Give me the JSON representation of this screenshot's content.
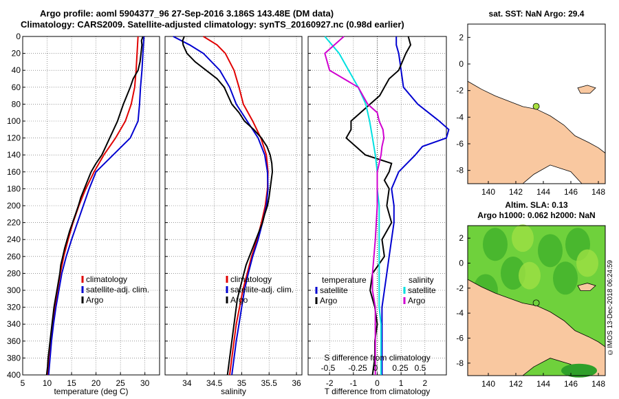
{
  "header": {
    "line1": "Argo profile: aoml 5904377_96 27-Sep-2016 3.186S 143.48E (DM data)",
    "line2": "Climatology: CARS2009. Satellite-adjusted climatology: synTS_20160927.nc (0.98d earlier)"
  },
  "side_label": "©IMOS 13-Dec-2018 06:24:59",
  "colors": {
    "climatology": "#e00000",
    "satellite": "#0000d0",
    "argo": "#000000",
    "salinity_diff": "#d000d0",
    "sat_sal_diff": "#00e0e0",
    "land": "#f9c8a0"
  },
  "chart_data": [
    {
      "type": "line",
      "title": "",
      "xlabel": "temperature (deg C)",
      "ylabel": "",
      "xlim": [
        5,
        33
      ],
      "ylim": [
        400,
        0
      ],
      "xticks": [
        5,
        10,
        15,
        20,
        25,
        30
      ],
      "yticks": [
        0,
        20,
        40,
        60,
        80,
        100,
        120,
        140,
        160,
        180,
        200,
        220,
        240,
        260,
        280,
        300,
        320,
        340,
        360,
        380,
        400
      ],
      "legend": [
        "climatology",
        "satellite-adj. clim.",
        "Argo"
      ],
      "series": [
        {
          "name": "climatology",
          "depth": [
            0,
            10,
            20,
            40,
            60,
            80,
            100,
            120,
            140,
            160,
            180,
            200,
            220,
            240,
            260,
            280,
            300,
            320,
            340,
            360,
            380,
            400
          ],
          "values": [
            28.6,
            28.5,
            28.4,
            28.2,
            27.9,
            27.2,
            26.0,
            24.0,
            21.6,
            19.6,
            17.9,
            16.5,
            15.3,
            14.3,
            13.4,
            12.7,
            12.1,
            11.6,
            11.2,
            10.8,
            10.5,
            10.1
          ]
        },
        {
          "name": "satellite",
          "depth": [
            0,
            10,
            20,
            40,
            60,
            80,
            100,
            120,
            140,
            160,
            180,
            200,
            220,
            240,
            260,
            280,
            300,
            320,
            340,
            360,
            380,
            400
          ],
          "values": [
            29.8,
            29.7,
            29.6,
            29.4,
            29.1,
            28.9,
            28.6,
            27.0,
            23.5,
            20.0,
            18.6,
            17.4,
            16.2,
            15.0,
            13.9,
            13.0,
            12.4,
            11.8,
            11.3,
            10.9,
            10.6,
            10.3
          ]
        },
        {
          "name": "Argo",
          "depth": [
            0,
            5,
            10,
            20,
            30,
            40,
            50,
            60,
            70,
            80,
            90,
            100,
            110,
            120,
            130,
            140,
            150,
            160,
            170,
            180,
            190,
            200,
            210,
            220,
            230,
            240,
            250,
            260,
            270,
            280,
            290,
            300,
            310,
            320,
            330,
            340,
            350,
            360,
            370,
            380,
            390,
            400
          ],
          "values": [
            29.6,
            29.3,
            29.4,
            29.2,
            29.0,
            28.6,
            27.6,
            27.0,
            26.3,
            25.6,
            25.0,
            24.4,
            23.6,
            22.8,
            22.0,
            21.2,
            20.0,
            19.0,
            18.3,
            17.6,
            16.9,
            16.4,
            15.8,
            15.2,
            14.6,
            14.1,
            13.6,
            13.2,
            12.8,
            12.6,
            12.3,
            12.0,
            11.7,
            11.4,
            11.2,
            11.0,
            10.8,
            10.6,
            10.4,
            10.2,
            10.1,
            9.9
          ]
        }
      ]
    },
    {
      "type": "line",
      "xlabel": "salinity",
      "xlim": [
        33.6,
        36.1
      ],
      "ylim": [
        400,
        0
      ],
      "xticks": [
        34,
        34.5,
        35,
        35.5,
        36
      ],
      "legend": [
        "climatology",
        "satellite-adj. clim.",
        "Argo"
      ],
      "series": [
        {
          "name": "climatology",
          "depth": [
            0,
            10,
            20,
            40,
            60,
            80,
            100,
            120,
            140,
            160,
            180,
            200,
            220,
            240,
            260,
            280,
            300,
            320,
            340,
            360,
            380,
            400
          ],
          "values": [
            34.3,
            34.55,
            34.7,
            34.86,
            34.95,
            35.03,
            35.2,
            35.35,
            35.45,
            35.48,
            35.47,
            35.43,
            35.36,
            35.28,
            35.18,
            35.1,
            35.02,
            34.96,
            34.9,
            34.86,
            34.82,
            34.78
          ]
        },
        {
          "name": "satellite",
          "depth": [
            0,
            10,
            20,
            40,
            60,
            80,
            100,
            120,
            140,
            160,
            180,
            200,
            220,
            240,
            260,
            280,
            300,
            320,
            340,
            360,
            380,
            400
          ],
          "values": [
            33.75,
            34.05,
            34.3,
            34.6,
            34.78,
            34.9,
            35.1,
            35.3,
            35.42,
            35.47,
            35.48,
            35.45,
            35.38,
            35.3,
            35.2,
            35.12,
            35.05,
            35.0,
            34.95,
            34.9,
            34.86,
            34.82
          ]
        },
        {
          "name": "Argo",
          "depth": [
            0,
            5,
            10,
            20,
            30,
            40,
            50,
            60,
            70,
            80,
            90,
            100,
            110,
            120,
            130,
            140,
            150,
            160,
            170,
            180,
            190,
            200,
            210,
            220,
            230,
            240,
            250,
            260,
            270,
            280,
            290,
            300,
            310,
            320,
            330,
            340,
            350,
            360,
            370,
            380,
            390,
            400
          ],
          "values": [
            33.95,
            33.92,
            33.93,
            34.0,
            34.15,
            34.35,
            34.55,
            34.68,
            34.75,
            34.82,
            34.95,
            35.05,
            35.22,
            35.36,
            35.46,
            35.52,
            35.55,
            35.56,
            35.54,
            35.52,
            35.5,
            35.47,
            35.42,
            35.38,
            35.32,
            35.26,
            35.2,
            35.14,
            35.08,
            35.04,
            35.0,
            34.96,
            34.92,
            34.9,
            34.88,
            34.86,
            34.84,
            34.82,
            34.8,
            34.78,
            34.76,
            34.74
          ]
        }
      ]
    },
    {
      "type": "line",
      "xlabel": "T difference from climatology",
      "xlabel2": "S difference from climatology",
      "xlim": [
        -2.9,
        2.9
      ],
      "ylim": [
        400,
        0
      ],
      "xticks": [
        -2,
        -1,
        0,
        1,
        2
      ],
      "xticks_S": [
        "-0.5",
        "-0.25",
        "0",
        "0.25",
        "0.5"
      ],
      "legend_T_title": "temperature",
      "legend_S_title": "salinity",
      "legend": [
        "satellite",
        "Argo",
        "satellite",
        "Argo"
      ],
      "series": [
        {
          "name": "T satellite",
          "depth": [
            0,
            10,
            20,
            40,
            60,
            80,
            100,
            110,
            120,
            130,
            140,
            160,
            180,
            200,
            220,
            240,
            260,
            280,
            300,
            320,
            340,
            360,
            380,
            400
          ],
          "values": [
            0.8,
            0.8,
            0.9,
            1.0,
            1.1,
            1.7,
            2.6,
            3.0,
            2.9,
            1.9,
            1.6,
            0.9,
            0.6,
            0.7,
            0.7,
            0.6,
            0.5,
            0.4,
            0.3,
            0.2,
            0.2,
            0.2,
            0.2,
            0.2
          ]
        },
        {
          "name": "T Argo",
          "depth": [
            0,
            10,
            20,
            40,
            50,
            60,
            70,
            80,
            90,
            100,
            110,
            120,
            130,
            140,
            150,
            160,
            170,
            180,
            200,
            220,
            240,
            260,
            280,
            300,
            320,
            340,
            360,
            380,
            400
          ],
          "values": [
            1.3,
            1.4,
            1.2,
            0.9,
            0.5,
            0.3,
            0.1,
            -0.3,
            -0.7,
            -1.1,
            -1.1,
            -1.3,
            -0.9,
            -0.5,
            0.6,
            0.5,
            0.3,
            0.5,
            0.4,
            0.6,
            0.2,
            0.3,
            -0.2,
            -0.3,
            -0.1,
            0.0,
            -0.1,
            -0.1,
            -0.2
          ]
        },
        {
          "name": "S satellite",
          "depth": [
            0,
            20,
            40,
            60,
            80,
            100,
            120,
            140,
            160,
            180,
            200,
            220,
            240,
            260,
            280,
            300,
            320,
            340,
            360,
            380,
            400
          ],
          "values": [
            -0.55,
            -0.4,
            -0.3,
            -0.2,
            -0.12,
            -0.08,
            -0.05,
            -0.02,
            0.0,
            0.0,
            0.02,
            0.02,
            0.02,
            0.02,
            0.02,
            0.02,
            0.02,
            0.04,
            0.04,
            0.04,
            0.04
          ]
        },
        {
          "name": "S Argo",
          "depth": [
            0,
            20,
            40,
            50,
            60,
            70,
            80,
            90,
            100,
            110,
            120,
            130,
            140,
            160,
            200,
            240,
            280,
            300,
            320,
            360,
            380,
            400
          ],
          "values": [
            -0.35,
            -0.55,
            -0.5,
            -0.35,
            -0.2,
            -0.15,
            -0.1,
            0.0,
            0.02,
            0.06,
            0.07,
            0.05,
            0.04,
            0.0,
            0.0,
            -0.02,
            -0.05,
            -0.05,
            -0.02,
            -0.02,
            -0.02,
            -0.02
          ]
        }
      ]
    },
    {
      "type": "map",
      "title": "sat. SST: NaN Argo: 29.4",
      "xticks": [
        140,
        142,
        144,
        146,
        148
      ],
      "yticks": [
        2,
        0,
        -2,
        -4,
        -6,
        -8
      ],
      "xlim": [
        138.5,
        148.5
      ],
      "ylim": [
        -9,
        3
      ],
      "argo_position": [
        143.48,
        -3.186
      ]
    },
    {
      "type": "map",
      "title": "Altim. SLA: 0.13",
      "title2": "Argo h1000: 0.062 h2000: NaN",
      "xticks": [
        140,
        142,
        144,
        146,
        148
      ],
      "yticks": [
        2,
        0,
        -2,
        -4,
        -6,
        -8
      ],
      "xlim": [
        138.5,
        148.5
      ],
      "ylim": [
        -9,
        3
      ],
      "argo_position": [
        143.48,
        -3.186
      ]
    }
  ]
}
